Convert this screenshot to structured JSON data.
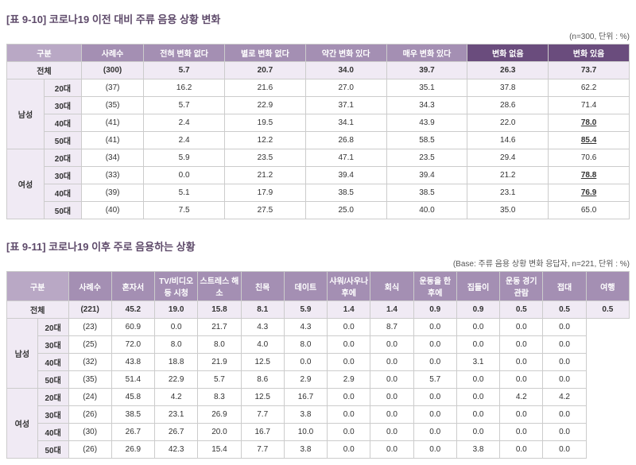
{
  "t1": {
    "title": "[표 9-10] 코로나19 이전 대비 주류 음용 상황 변화",
    "note": "(n=300, 단위 : %)",
    "headers": [
      "구분",
      "사례수",
      "전혀 변화 없다",
      "별로 변화 없다",
      "약간 변화 있다",
      "매우 변화 있다",
      "변화 없음",
      "변화 있음"
    ],
    "total_label": "전체",
    "total": [
      "(300)",
      "5.7",
      "20.7",
      "34.0",
      "39.7",
      "26.3",
      "73.7"
    ],
    "g1": "남성",
    "g2": "여성",
    "rows": [
      [
        "20대",
        "(37)",
        "16.2",
        "21.6",
        "27.0",
        "35.1",
        "37.8",
        "62.2",
        false
      ],
      [
        "30대",
        "(35)",
        "5.7",
        "22.9",
        "37.1",
        "34.3",
        "28.6",
        "71.4",
        false
      ],
      [
        "40대",
        "(41)",
        "2.4",
        "19.5",
        "34.1",
        "43.9",
        "22.0",
        "78.0",
        true
      ],
      [
        "50대",
        "(41)",
        "2.4",
        "12.2",
        "26.8",
        "58.5",
        "14.6",
        "85.4",
        true
      ],
      [
        "20대",
        "(34)",
        "5.9",
        "23.5",
        "47.1",
        "23.5",
        "29.4",
        "70.6",
        false
      ],
      [
        "30대",
        "(33)",
        "0.0",
        "21.2",
        "39.4",
        "39.4",
        "21.2",
        "78.8",
        true
      ],
      [
        "40대",
        "(39)",
        "5.1",
        "17.9",
        "38.5",
        "38.5",
        "23.1",
        "76.9",
        true
      ],
      [
        "50대",
        "(40)",
        "7.5",
        "27.5",
        "25.0",
        "40.0",
        "35.0",
        "65.0",
        false
      ]
    ]
  },
  "t2": {
    "title": "[표 9-11] 코로나19 이후 주로 음용하는 상황",
    "note": "(Base: 주류 음용 상황 변화 응답자, n=221, 단위 : %)",
    "headers": [
      "구분",
      "사례수",
      "혼자서",
      "TV/비디오 등 시청",
      "스트레스 해소",
      "친목",
      "데이트",
      "샤워/사우나 후에",
      "회식",
      "운동을 한 후에",
      "집들이",
      "운동 경기 관람",
      "접대",
      "여행"
    ],
    "total_label": "전체",
    "total": [
      "(221)",
      "45.2",
      "19.0",
      "15.8",
      "8.1",
      "5.9",
      "1.4",
      "1.4",
      "0.9",
      "0.9",
      "0.5",
      "0.5",
      "0.5"
    ],
    "g1": "남성",
    "g2": "여성",
    "rows": [
      [
        "20대",
        "(23)",
        "60.9",
        "0.0",
        "21.7",
        "4.3",
        "4.3",
        "0.0",
        "8.7",
        "0.0",
        "0.0",
        "0.0",
        "0.0",
        "0.0"
      ],
      [
        "30대",
        "(25)",
        "72.0",
        "8.0",
        "8.0",
        "4.0",
        "8.0",
        "0.0",
        "0.0",
        "0.0",
        "0.0",
        "0.0",
        "0.0",
        "0.0"
      ],
      [
        "40대",
        "(32)",
        "43.8",
        "18.8",
        "21.9",
        "12.5",
        "0.0",
        "0.0",
        "0.0",
        "0.0",
        "3.1",
        "0.0",
        "0.0",
        "0.0"
      ],
      [
        "50대",
        "(35)",
        "51.4",
        "22.9",
        "5.7",
        "8.6",
        "2.9",
        "2.9",
        "0.0",
        "5.7",
        "0.0",
        "0.0",
        "0.0",
        "0.0"
      ],
      [
        "20대",
        "(24)",
        "45.8",
        "4.2",
        "8.3",
        "12.5",
        "16.7",
        "0.0",
        "0.0",
        "0.0",
        "0.0",
        "4.2",
        "4.2",
        "4.2"
      ],
      [
        "30대",
        "(26)",
        "38.5",
        "23.1",
        "26.9",
        "7.7",
        "3.8",
        "0.0",
        "0.0",
        "0.0",
        "0.0",
        "0.0",
        "0.0",
        "0.0"
      ],
      [
        "40대",
        "(30)",
        "26.7",
        "26.7",
        "20.0",
        "16.7",
        "10.0",
        "0.0",
        "0.0",
        "0.0",
        "0.0",
        "0.0",
        "0.0",
        "0.0"
      ],
      [
        "50대",
        "(26)",
        "26.9",
        "42.3",
        "15.4",
        "7.7",
        "3.8",
        "0.0",
        "0.0",
        "0.0",
        "3.8",
        "0.0",
        "0.0",
        "0.0"
      ]
    ]
  }
}
